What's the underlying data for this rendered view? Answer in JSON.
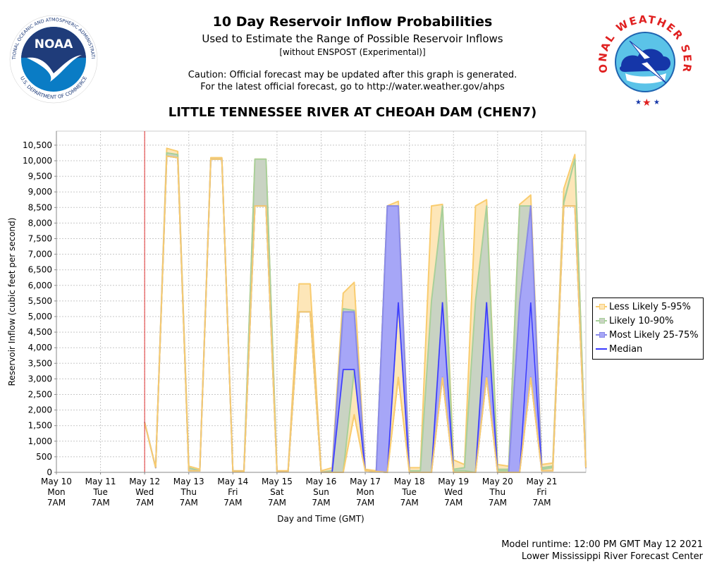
{
  "header": {
    "title": "10 Day Reservoir Inflow Probabilities",
    "subtitle": "Used to Estimate the Range of Possible Reservoir Inflows",
    "subtitle2": "[without ENSPOST (Experimental)]",
    "caution_line1": "Caution: Official forecast may be updated after this graph is generated.",
    "caution_line2": "For the latest official forecast, go to http://water.weather.gov/ahps",
    "station": "LITTLE TENNESSEE RIVER AT CHEOAH DAM (CHEN7)"
  },
  "logos": {
    "left": {
      "name": "NOAA",
      "ring_text": "NATIONAL OCEANIC AND ATMOSPHERIC ADMINISTRATION",
      "bottom_text": "U.S. DEPARTMENT OF COMMERCE"
    },
    "right": {
      "name": "NATIONAL WEATHER SERVICE"
    }
  },
  "footer": {
    "runtime": "Model runtime: 12:00 PM GMT May 12 2021",
    "center": "Lower Mississippi River Forecast Center"
  },
  "colors": {
    "less_likely": "#f9cc6f",
    "less_likely_fill": "#fde6b8",
    "likely": "#a8d09a",
    "likely_fill": "#c9d3c3",
    "most_likely": "#8a8ae8",
    "most_likely_fill": "#a6a6f7",
    "median": "#3a3aff",
    "forecast_start": "#e03030"
  },
  "chart_data": {
    "type": "area",
    "title": "LITTLE TENNESSEE RIVER AT CHEOAH DAM (CHEN7)",
    "xlabel": "Day and Time (GMT)",
    "ylabel": "Reservoir Inflow (cubic feet per second)",
    "ylim": [
      0,
      10950
    ],
    "yticks": [
      0,
      500,
      1000,
      1500,
      2000,
      2500,
      3000,
      3500,
      4000,
      4500,
      5000,
      5500,
      6000,
      6500,
      7000,
      7500,
      8000,
      8500,
      9000,
      9500,
      10000,
      10500
    ],
    "ytick_labels": [
      "0",
      "500",
      "1,000",
      "1,500",
      "2,000",
      "2,500",
      "3,000",
      "3,500",
      "4,000",
      "4,500",
      "5,000",
      "5,500",
      "6,000",
      "6,500",
      "7,000",
      "7,500",
      "8,000",
      "8,500",
      "9,000",
      "9,500",
      "10,000",
      "10,500"
    ],
    "xlim_days": [
      0,
      12
    ],
    "xticks": [
      {
        "day": 0,
        "lines": [
          "May 10",
          "Mon",
          "7AM"
        ]
      },
      {
        "day": 1,
        "lines": [
          "May 11",
          "Tue",
          "7AM"
        ]
      },
      {
        "day": 2,
        "lines": [
          "May 12",
          "Wed",
          "7AM"
        ]
      },
      {
        "day": 3,
        "lines": [
          "May 13",
          "Thu",
          "7AM"
        ]
      },
      {
        "day": 4,
        "lines": [
          "May 14",
          "Fri",
          "7AM"
        ]
      },
      {
        "day": 5,
        "lines": [
          "May 15",
          "Sat",
          "7AM"
        ]
      },
      {
        "day": 6,
        "lines": [
          "May 16",
          "Sun",
          "7AM"
        ]
      },
      {
        "day": 7,
        "lines": [
          "May 17",
          "Mon",
          "7AM"
        ]
      },
      {
        "day": 8,
        "lines": [
          "May 18",
          "Tue",
          "7AM"
        ]
      },
      {
        "day": 9,
        "lines": [
          "May 19",
          "Wed",
          "7AM"
        ]
      },
      {
        "day": 10,
        "lines": [
          "May 20",
          "Thu",
          "7AM"
        ]
      },
      {
        "day": 11,
        "lines": [
          "May 21",
          "Fri",
          "7AM"
        ]
      }
    ],
    "forecast_start_day": 2,
    "time_step_days": 0.25,
    "series_start_day": 2,
    "grid": true,
    "legend_position": "right",
    "legend": [
      {
        "key": "p5_95",
        "label": "Less Likely 5-95%"
      },
      {
        "key": "p10_90",
        "label": "Likely 10-90%"
      },
      {
        "key": "p25_75",
        "label": "Most Likely 25-75%"
      },
      {
        "key": "median",
        "label": "Median"
      }
    ],
    "series": {
      "p5": [
        1600,
        150,
        10150,
        10100,
        50,
        50,
        10050,
        10050,
        30,
        30,
        8550,
        8550,
        20,
        20,
        5150,
        5150,
        10,
        0,
        0,
        1850,
        50,
        30,
        0,
        3050,
        0,
        0,
        0,
        3050,
        0,
        0,
        0,
        3050,
        0,
        0,
        0,
        3050,
        50,
        50,
        8550,
        8550,
        150
      ],
      "p10": [
        1600,
        150,
        10150,
        10100,
        50,
        50,
        10050,
        10050,
        30,
        30,
        8550,
        8550,
        20,
        20,
        5150,
        5150,
        10,
        0,
        0,
        3250,
        50,
        30,
        0,
        5450,
        0,
        0,
        0,
        5450,
        50,
        50,
        0,
        5450,
        50,
        50,
        5450,
        8550,
        100,
        150,
        8650,
        10050,
        150
      ],
      "p25": [
        1600,
        150,
        10150,
        10100,
        50,
        50,
        10050,
        10050,
        30,
        30,
        8550,
        8550,
        20,
        20,
        5150,
        5150,
        10,
        0,
        3300,
        3300,
        50,
        30,
        0,
        5450,
        0,
        0,
        0,
        3050,
        0,
        0,
        0,
        3050,
        0,
        0,
        0,
        3050,
        50,
        50,
        8550,
        8550,
        150
      ],
      "median": [
        1600,
        150,
        10150,
        10100,
        50,
        50,
        10050,
        10050,
        30,
        30,
        8550,
        8550,
        20,
        20,
        5150,
        5150,
        10,
        0,
        3300,
        3300,
        50,
        30,
        0,
        5450,
        0,
        0,
        0,
        5450,
        0,
        0,
        0,
        5450,
        0,
        0,
        0,
        5450,
        50,
        50,
        8550,
        8550,
        150
      ],
      "p75": [
        1600,
        150,
        10150,
        10100,
        50,
        50,
        10050,
        10050,
        30,
        30,
        8550,
        8550,
        20,
        20,
        5150,
        5150,
        10,
        0,
        5150,
        5150,
        50,
        30,
        8550,
        8550,
        0,
        0,
        0,
        5450,
        0,
        0,
        0,
        5450,
        0,
        0,
        5450,
        8550,
        50,
        50,
        8550,
        8550,
        150
      ],
      "p90": [
        1600,
        150,
        10250,
        10200,
        150,
        50,
        10050,
        10050,
        30,
        30,
        10050,
        10050,
        20,
        20,
        5150,
        5150,
        10,
        50,
        5250,
        5200,
        50,
        30,
        8550,
        8550,
        50,
        50,
        5500,
        8550,
        100,
        150,
        5500,
        8550,
        100,
        100,
        8550,
        8550,
        150,
        200,
        8700,
        10050,
        150
      ],
      "p95": [
        1600,
        150,
        10400,
        10300,
        200,
        100,
        10100,
        10100,
        50,
        50,
        10050,
        10050,
        50,
        50,
        6050,
        6050,
        50,
        150,
        5750,
        6100,
        100,
        50,
        8550,
        8700,
        150,
        150,
        8550,
        8600,
        400,
        250,
        8550,
        8750,
        250,
        200,
        8600,
        8900,
        250,
        300,
        9100,
        10200,
        150
      ]
    }
  }
}
